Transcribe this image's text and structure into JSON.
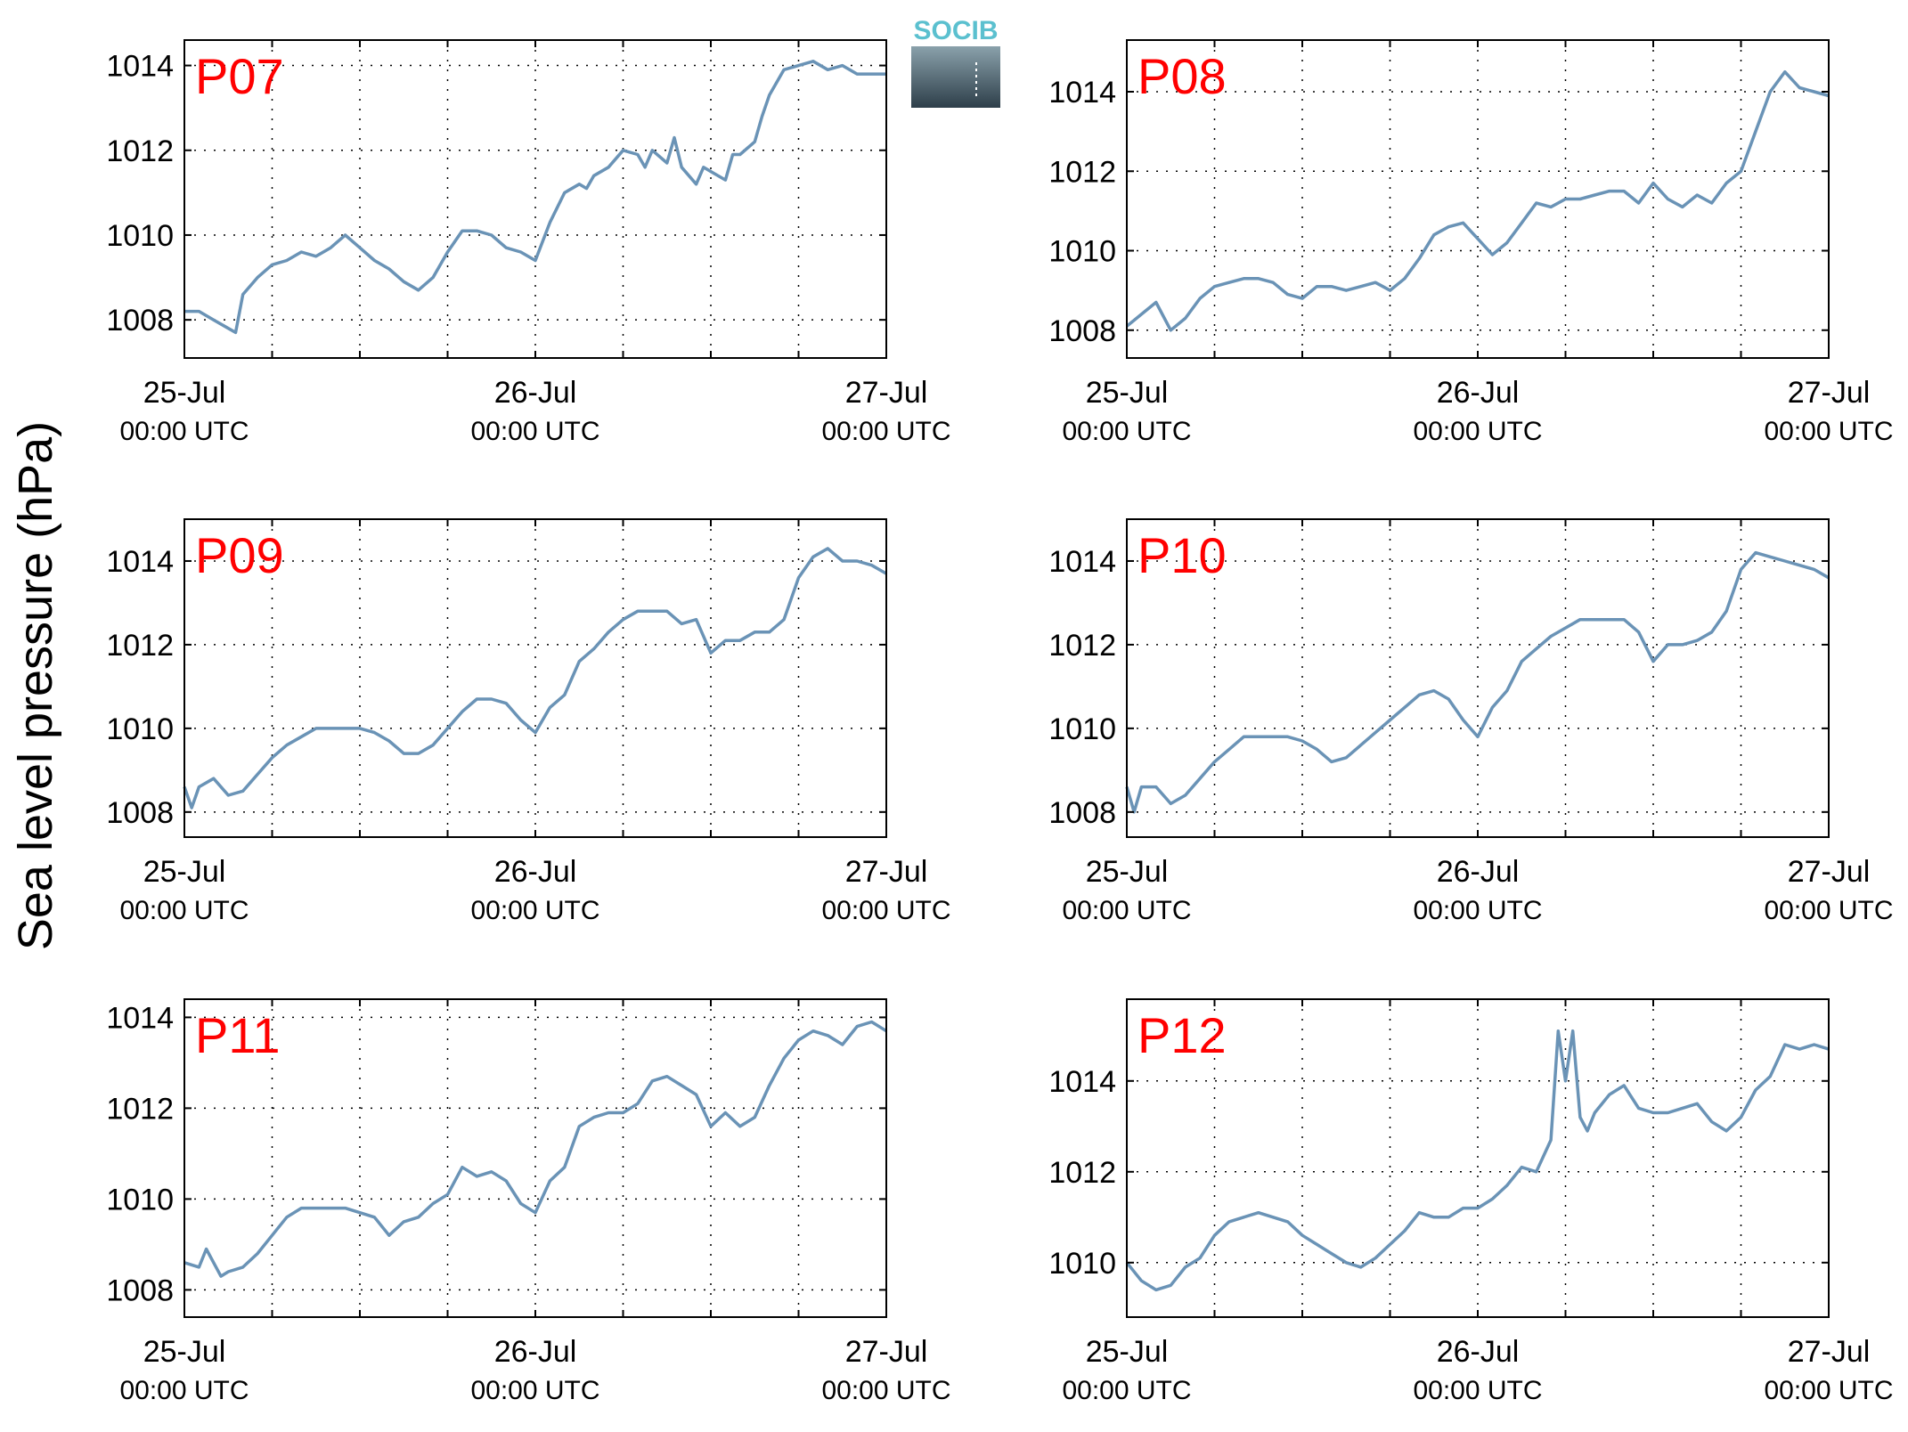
{
  "figure": {
    "ylabel": "Sea level pressure (hPa)",
    "line_color": "#6a93b6",
    "label_color": "#ff0000",
    "logo": {
      "text": "SOCIB",
      "text_color": "#5bc0cf",
      "gradient_top": "#8aa1ab",
      "gradient_bottom": "#2e3f4a"
    }
  },
  "chart_data": [
    {
      "type": "line",
      "label": "P07",
      "x_ticks": [
        {
          "main": "25-Jul",
          "sub": "00:00 UTC"
        },
        {
          "main": "26-Jul",
          "sub": "00:00 UTC"
        },
        {
          "main": "27-Jul",
          "sub": "00:00 UTC"
        }
      ],
      "xlim_hours": [
        0,
        48
      ],
      "ylim": [
        1007.1,
        1014.6
      ],
      "y_ticks": [
        1008,
        1010,
        1012,
        1014
      ],
      "grid": true,
      "series": [
        {
          "x_hours": [
            0,
            1,
            2,
            3,
            3.5,
            4,
            5,
            6,
            7,
            8,
            9,
            10,
            11,
            12,
            13,
            14,
            15,
            16,
            17,
            18,
            19,
            20,
            21,
            22,
            23,
            24,
            25,
            26,
            27,
            27.5,
            28,
            29,
            30,
            31,
            31.5,
            32,
            33,
            33.5,
            34,
            35,
            35.5,
            36,
            37,
            37.5,
            38,
            39,
            39.5,
            40,
            41,
            42,
            43,
            44,
            45,
            46,
            47,
            48
          ],
          "values": [
            1008.2,
            1008.2,
            1008.0,
            1007.8,
            1007.7,
            1008.6,
            1009.0,
            1009.3,
            1009.4,
            1009.6,
            1009.5,
            1009.7,
            1010.0,
            1009.7,
            1009.4,
            1009.2,
            1008.9,
            1008.7,
            1009.0,
            1009.6,
            1010.1,
            1010.1,
            1010.0,
            1009.7,
            1009.6,
            1009.4,
            1010.3,
            1011.0,
            1011.2,
            1011.1,
            1011.4,
            1011.6,
            1012.0,
            1011.9,
            1011.6,
            1012.0,
            1011.7,
            1012.3,
            1011.6,
            1011.2,
            1011.6,
            1011.5,
            1011.3,
            1011.9,
            1011.9,
            1012.2,
            1012.8,
            1013.3,
            1013.9,
            1014.0,
            1014.1,
            1013.9,
            1014.0,
            1013.8,
            1013.8,
            1013.8
          ]
        }
      ]
    },
    {
      "type": "line",
      "label": "P08",
      "x_ticks": [
        {
          "main": "25-Jul",
          "sub": "00:00 UTC"
        },
        {
          "main": "26-Jul",
          "sub": "00:00 UTC"
        },
        {
          "main": "27-Jul",
          "sub": "00:00 UTC"
        }
      ],
      "xlim_hours": [
        0,
        48
      ],
      "ylim": [
        1007.3,
        1015.3
      ],
      "y_ticks": [
        1008,
        1010,
        1012,
        1014
      ],
      "grid": true,
      "series": [
        {
          "x_hours": [
            0,
            1,
            2,
            3,
            4,
            5,
            6,
            7,
            8,
            9,
            10,
            11,
            12,
            13,
            14,
            15,
            16,
            17,
            18,
            19,
            20,
            21,
            22,
            23,
            24,
            25,
            26,
            27,
            28,
            29,
            30,
            31,
            32,
            33,
            34,
            35,
            36,
            37,
            38,
            39,
            40,
            41,
            42,
            43,
            44,
            45,
            46,
            47,
            48
          ],
          "values": [
            1008.1,
            1008.4,
            1008.7,
            1008.0,
            1008.3,
            1008.8,
            1009.1,
            1009.2,
            1009.3,
            1009.3,
            1009.2,
            1008.9,
            1008.8,
            1009.1,
            1009.1,
            1009.0,
            1009.1,
            1009.2,
            1009.0,
            1009.3,
            1009.8,
            1010.4,
            1010.6,
            1010.7,
            1010.3,
            1009.9,
            1010.2,
            1010.7,
            1011.2,
            1011.1,
            1011.3,
            1011.3,
            1011.4,
            1011.5,
            1011.5,
            1011.2,
            1011.7,
            1011.3,
            1011.1,
            1011.4,
            1011.2,
            1011.7,
            1012.0,
            1013.0,
            1014.0,
            1014.5,
            1014.1,
            1014.0,
            1013.9
          ]
        }
      ]
    },
    {
      "type": "line",
      "label": "P09",
      "x_ticks": [
        {
          "main": "25-Jul",
          "sub": "00:00 UTC"
        },
        {
          "main": "26-Jul",
          "sub": "00:00 UTC"
        },
        {
          "main": "27-Jul",
          "sub": "00:00 UTC"
        }
      ],
      "xlim_hours": [
        0,
        48
      ],
      "ylim": [
        1007.4,
        1015.0
      ],
      "y_ticks": [
        1008,
        1010,
        1012,
        1014
      ],
      "grid": true,
      "series": [
        {
          "x_hours": [
            0,
            0.5,
            1,
            2,
            3,
            4,
            5,
            6,
            7,
            8,
            9,
            10,
            11,
            12,
            13,
            14,
            15,
            16,
            17,
            18,
            19,
            20,
            21,
            22,
            23,
            24,
            25,
            26,
            27,
            28,
            29,
            30,
            31,
            32,
            33,
            34,
            35,
            36,
            37,
            38,
            39,
            40,
            41,
            42,
            43,
            44,
            45,
            46,
            47,
            48
          ],
          "values": [
            1008.6,
            1008.1,
            1008.6,
            1008.8,
            1008.4,
            1008.5,
            1008.9,
            1009.3,
            1009.6,
            1009.8,
            1010.0,
            1010.0,
            1010.0,
            1010.0,
            1009.9,
            1009.7,
            1009.4,
            1009.4,
            1009.6,
            1010.0,
            1010.4,
            1010.7,
            1010.7,
            1010.6,
            1010.2,
            1009.9,
            1010.5,
            1010.8,
            1011.6,
            1011.9,
            1012.3,
            1012.6,
            1012.8,
            1012.8,
            1012.8,
            1012.5,
            1012.6,
            1011.8,
            1012.1,
            1012.1,
            1012.3,
            1012.3,
            1012.6,
            1013.6,
            1014.1,
            1014.3,
            1014.0,
            1014.0,
            1013.9,
            1013.7
          ]
        }
      ]
    },
    {
      "type": "line",
      "label": "P10",
      "x_ticks": [
        {
          "main": "25-Jul",
          "sub": "00:00 UTC"
        },
        {
          "main": "26-Jul",
          "sub": "00:00 UTC"
        },
        {
          "main": "27-Jul",
          "sub": "00:00 UTC"
        }
      ],
      "xlim_hours": [
        0,
        48
      ],
      "ylim": [
        1007.4,
        1015.0
      ],
      "y_ticks": [
        1008,
        1010,
        1012,
        1014
      ],
      "grid": true,
      "series": [
        {
          "x_hours": [
            0,
            0.5,
            1,
            2,
            3,
            4,
            5,
            6,
            7,
            8,
            9,
            10,
            11,
            12,
            13,
            14,
            15,
            16,
            17,
            18,
            19,
            20,
            21,
            22,
            23,
            24,
            25,
            26,
            27,
            28,
            29,
            30,
            31,
            32,
            33,
            34,
            35,
            36,
            37,
            38,
            39,
            40,
            41,
            42,
            43,
            44,
            45,
            46,
            47,
            48
          ],
          "values": [
            1008.6,
            1008.0,
            1008.6,
            1008.6,
            1008.2,
            1008.4,
            1008.8,
            1009.2,
            1009.5,
            1009.8,
            1009.8,
            1009.8,
            1009.8,
            1009.7,
            1009.5,
            1009.2,
            1009.3,
            1009.6,
            1009.9,
            1010.2,
            1010.5,
            1010.8,
            1010.9,
            1010.7,
            1010.2,
            1009.8,
            1010.5,
            1010.9,
            1011.6,
            1011.9,
            1012.2,
            1012.4,
            1012.6,
            1012.6,
            1012.6,
            1012.6,
            1012.3,
            1011.6,
            1012.0,
            1012.0,
            1012.1,
            1012.3,
            1012.8,
            1013.8,
            1014.2,
            1014.1,
            1014.0,
            1013.9,
            1013.8,
            1013.6
          ]
        }
      ]
    },
    {
      "type": "line",
      "label": "P11",
      "x_ticks": [
        {
          "main": "25-Jul",
          "sub": "00:00 UTC"
        },
        {
          "main": "26-Jul",
          "sub": "00:00 UTC"
        },
        {
          "main": "27-Jul",
          "sub": "00:00 UTC"
        }
      ],
      "xlim_hours": [
        0,
        48
      ],
      "ylim": [
        1007.4,
        1014.4
      ],
      "y_ticks": [
        1008,
        1010,
        1012,
        1014
      ],
      "grid": true,
      "series": [
        {
          "x_hours": [
            0,
            1,
            1.5,
            2,
            2.5,
            3,
            4,
            5,
            6,
            7,
            8,
            9,
            10,
            11,
            12,
            13,
            14,
            15,
            16,
            17,
            18,
            19,
            20,
            21,
            22,
            23,
            24,
            25,
            26,
            27,
            28,
            29,
            30,
            31,
            32,
            33,
            34,
            35,
            36,
            37,
            38,
            39,
            40,
            41,
            42,
            43,
            44,
            45,
            46,
            47,
            48
          ],
          "values": [
            1008.6,
            1008.5,
            1008.9,
            1008.6,
            1008.3,
            1008.4,
            1008.5,
            1008.8,
            1009.2,
            1009.6,
            1009.8,
            1009.8,
            1009.8,
            1009.8,
            1009.7,
            1009.6,
            1009.2,
            1009.5,
            1009.6,
            1009.9,
            1010.1,
            1010.7,
            1010.5,
            1010.6,
            1010.4,
            1009.9,
            1009.7,
            1010.4,
            1010.7,
            1011.6,
            1011.8,
            1011.9,
            1011.9,
            1012.1,
            1012.6,
            1012.7,
            1012.5,
            1012.3,
            1011.6,
            1011.9,
            1011.6,
            1011.8,
            1012.5,
            1013.1,
            1013.5,
            1013.7,
            1013.6,
            1013.4,
            1013.8,
            1013.9,
            1013.7
          ]
        }
      ]
    },
    {
      "type": "line",
      "label": "P12",
      "x_ticks": [
        {
          "main": "25-Jul",
          "sub": "00:00 UTC"
        },
        {
          "main": "26-Jul",
          "sub": "00:00 UTC"
        },
        {
          "main": "27-Jul",
          "sub": "00:00 UTC"
        }
      ],
      "xlim_hours": [
        0,
        48
      ],
      "ylim": [
        1008.8,
        1015.8
      ],
      "y_ticks": [
        1010,
        1012,
        1014
      ],
      "grid": true,
      "series": [
        {
          "x_hours": [
            0,
            1,
            2,
            3,
            4,
            5,
            6,
            7,
            8,
            9,
            10,
            11,
            12,
            13,
            14,
            15,
            16,
            17,
            18,
            19,
            20,
            21,
            22,
            23,
            24,
            25,
            26,
            27,
            28,
            29,
            29.5,
            30,
            30.5,
            31,
            31.5,
            32,
            33,
            34,
            35,
            36,
            37,
            38,
            39,
            40,
            41,
            42,
            43,
            44,
            45,
            46,
            47,
            48
          ],
          "values": [
            1010.0,
            1009.6,
            1009.4,
            1009.5,
            1009.9,
            1010.1,
            1010.6,
            1010.9,
            1011.0,
            1011.1,
            1011.0,
            1010.9,
            1010.6,
            1010.4,
            1010.2,
            1010.0,
            1009.9,
            1010.1,
            1010.4,
            1010.7,
            1011.1,
            1011.0,
            1011.0,
            1011.2,
            1011.2,
            1011.4,
            1011.7,
            1012.1,
            1012.0,
            1012.7,
            1015.1,
            1014.0,
            1015.1,
            1013.2,
            1012.9,
            1013.3,
            1013.7,
            1013.9,
            1013.4,
            1013.3,
            1013.3,
            1013.4,
            1013.5,
            1013.1,
            1012.9,
            1013.2,
            1013.8,
            1014.1,
            1014.8,
            1014.7,
            1014.8,
            1014.7
          ]
        }
      ]
    }
  ]
}
